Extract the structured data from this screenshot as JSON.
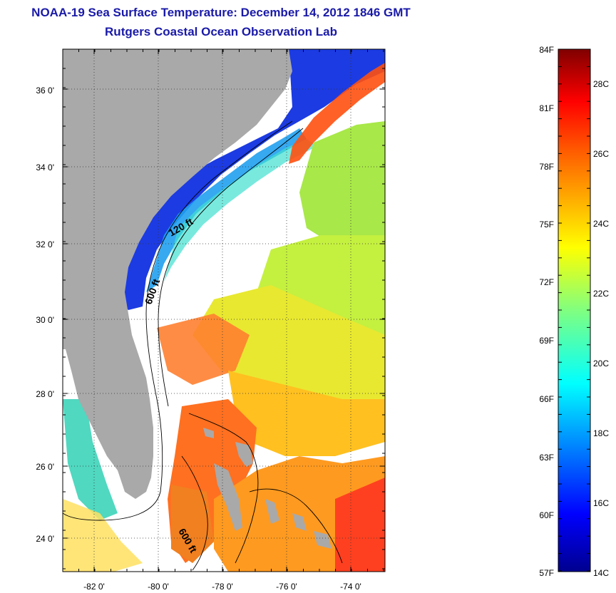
{
  "header": {
    "title": "NOAA-19 Sea Surface Temperature:  December 14, 2012 1846 GMT",
    "subtitle": "Rutgers Coastal Ocean Observation Lab"
  },
  "map": {
    "lat_labels": [
      "36 0'",
      "34 0'",
      "32 0'",
      "30 0'",
      "28 0'",
      "26 0'",
      "24 0'"
    ],
    "lon_labels": [
      "-82 0'",
      "-80 0'",
      "-78 0'",
      "-76 0'",
      "-74 0'"
    ],
    "contour_labels": [
      "120 ft",
      "600 ft",
      "600 ft"
    ],
    "land_color": "#a9a9a9",
    "cloud_color": "#ffffff"
  },
  "colorbar": {
    "f_labels": [
      "84F",
      "81F",
      "78F",
      "75F",
      "72F",
      "69F",
      "66F",
      "63F",
      "60F",
      "57F"
    ],
    "c_labels": [
      "28C",
      "26C",
      "24C",
      "22C",
      "20C",
      "18C",
      "16C",
      "14C"
    ],
    "range_c": [
      14,
      29
    ]
  }
}
